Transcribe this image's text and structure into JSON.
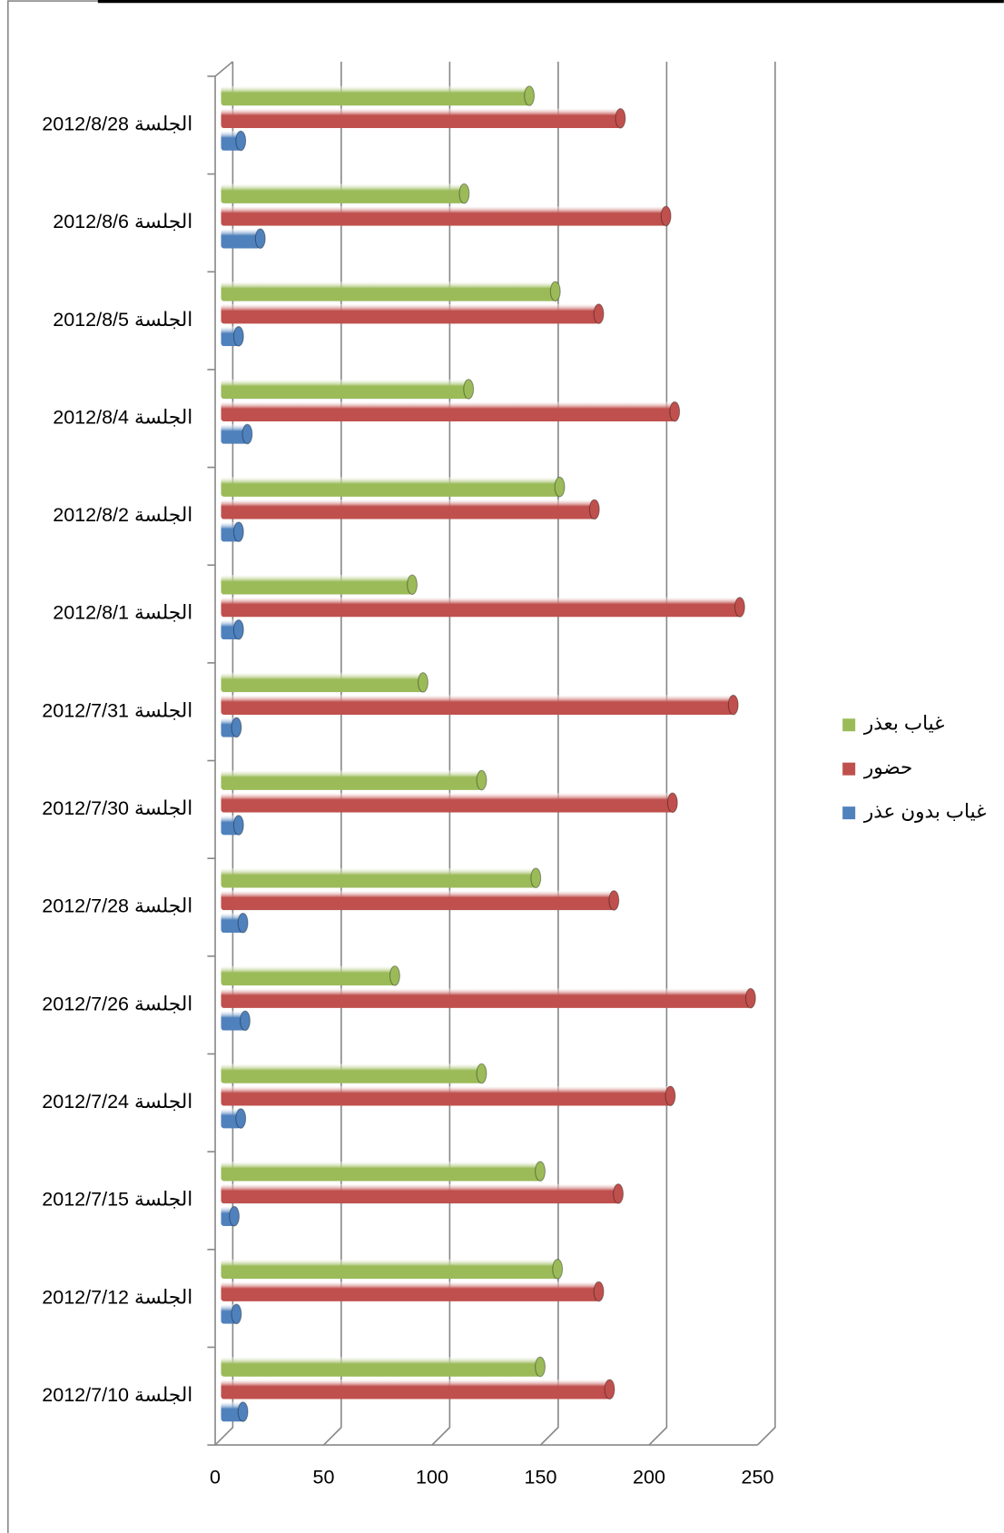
{
  "chart_data": {
    "type": "bar",
    "orientation": "horizontal",
    "categories": [
      "الجلسة 2012/8/28",
      "الجلسة 2012/8/6",
      "الجلسة 2012/8/5",
      "الجلسة 2012/8/4",
      "الجلسة 2012/8/2",
      "الجلسة 2012/8/1",
      "الجلسة 2012/7/31",
      "الجلسة 2012/7/30",
      "الجلسة 2012/7/28",
      "الجلسة 2012/7/26",
      "الجلسة 2012/7/24",
      "الجلسة 2012/7/15",
      "الجلسة 2012/7/12",
      "الجلسة 2012/7/10"
    ],
    "series": [
      {
        "name": "غياب بعذر",
        "color": "#9bbb59",
        "values": [
          143,
          113,
          155,
          115,
          157,
          89,
          94,
          121,
          146,
          81,
          121,
          148,
          156,
          148
        ]
      },
      {
        "name": "حضور",
        "color": "#c0504d",
        "values": [
          185,
          206,
          175,
          210,
          173,
          240,
          237,
          209,
          182,
          245,
          208,
          184,
          175,
          180
        ]
      },
      {
        "name": "غياب بدون عذر",
        "color": "#4f81bd",
        "values": [
          10,
          19,
          9,
          13,
          9,
          9,
          8,
          9,
          11,
          12,
          10,
          7,
          8,
          11
        ]
      }
    ],
    "xlim": [
      0,
      250
    ],
    "xticks": [
      0,
      50,
      100,
      150,
      200,
      250
    ],
    "grid": true,
    "legend": "right"
  }
}
